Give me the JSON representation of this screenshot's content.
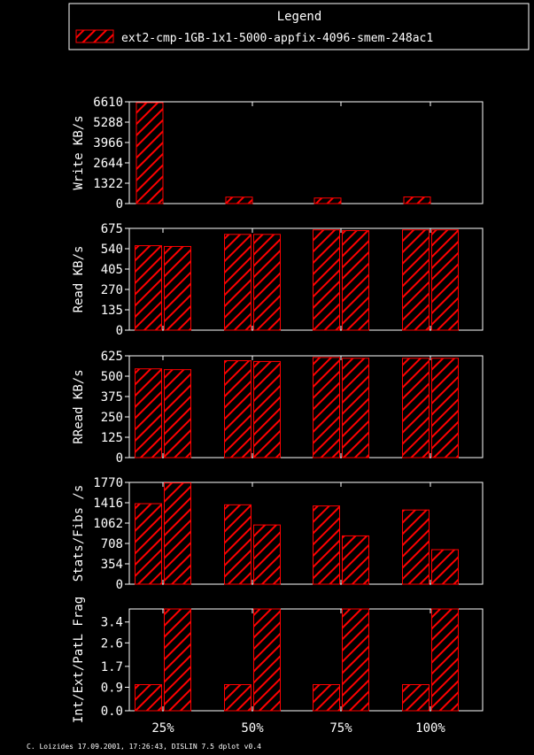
{
  "legend": {
    "title": "Legend",
    "entry": "ext2-cmp-1GB-1x1-5000-appfix-4096-smem-248ac1",
    "color": "#ff0000"
  },
  "footer": "C. Loizides 17.09.2001, 17:26:43, DISLIN 7.5 dplot v0.4",
  "chart_data": {
    "type": "bar",
    "categories": [
      "25%",
      "50%",
      "75%",
      "100%"
    ],
    "bar_color": "#ff0000",
    "background": "#000000",
    "panels": [
      {
        "ylabel": "Write KB/s",
        "yticks": [
          "0",
          "1322",
          "2644",
          "3966",
          "5288",
          "6610"
        ],
        "ylim": [
          0,
          6610
        ],
        "values": [
          [
            6550
          ],
          [
            420
          ],
          [
            360
          ],
          [
            430
          ]
        ]
      },
      {
        "ylabel": "Read KB/s",
        "yticks": [
          "0",
          "135",
          "270",
          "405",
          "540",
          "675"
        ],
        "ylim": [
          0,
          675
        ],
        "values": [
          [
            560,
            555
          ],
          [
            635,
            635
          ],
          [
            665,
            660
          ],
          [
            665,
            665
          ]
        ]
      },
      {
        "ylabel": "RRead KB/s",
        "yticks": [
          "0",
          "125",
          "250",
          "375",
          "500",
          "625"
        ],
        "ylim": [
          0,
          625
        ],
        "values": [
          [
            545,
            540
          ],
          [
            595,
            590
          ],
          [
            615,
            610
          ],
          [
            610,
            610
          ]
        ]
      },
      {
        "ylabel": "Stats/Fibs /s",
        "yticks": [
          "0",
          "354",
          "708",
          "1062",
          "1416",
          "1770"
        ],
        "ylim": [
          0,
          1770
        ],
        "values": [
          [
            1400,
            1760
          ],
          [
            1380,
            1030
          ],
          [
            1360,
            840
          ],
          [
            1290,
            600
          ]
        ]
      },
      {
        "ylabel": "Int/Ext/PatL Frag",
        "yticks": [
          "0.0",
          "0.9",
          "1.7",
          "2.6",
          "3.4"
        ],
        "ylim": [
          0,
          3.9
        ],
        "values": [
          [
            1.0,
            3.9
          ],
          [
            1.0,
            3.9
          ],
          [
            1.0,
            3.9
          ],
          [
            1.0,
            3.9
          ]
        ]
      }
    ]
  }
}
